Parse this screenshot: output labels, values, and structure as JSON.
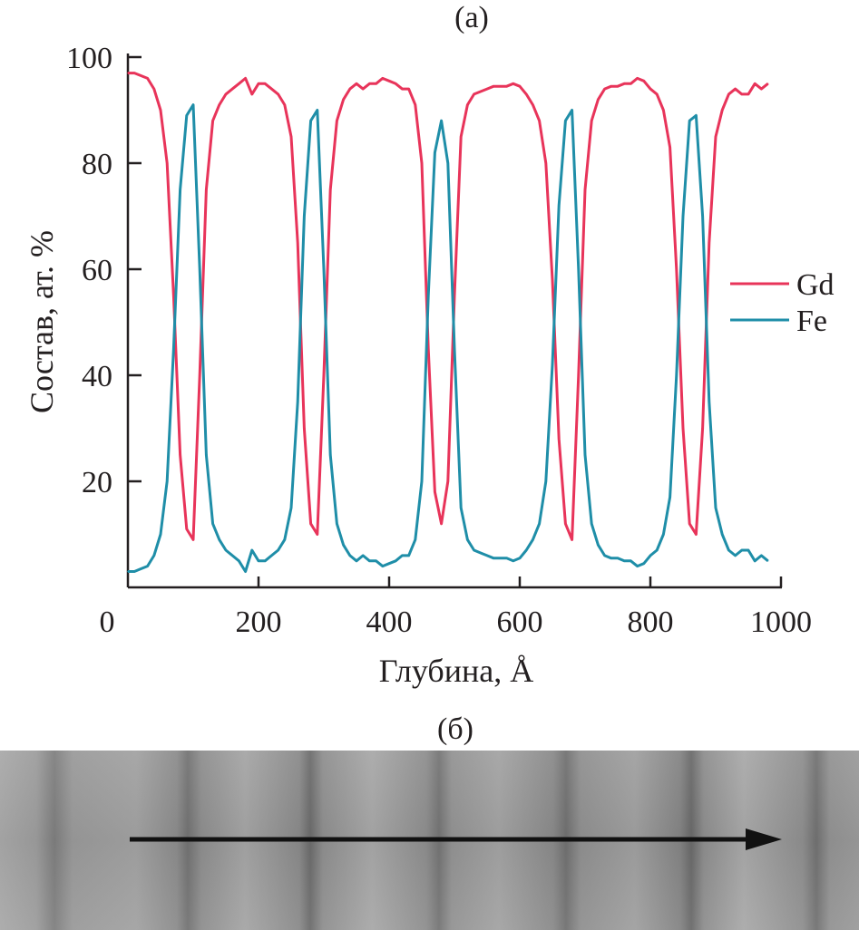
{
  "chart_data": {
    "type": "line",
    "panel_label": "(а)",
    "xlabel": "Глубина, Å",
    "ylabel": "Состав, ат. %",
    "xlim": [
      0,
      1000
    ],
    "ylim": [
      0,
      100
    ],
    "x_ticks": [
      "0",
      "200",
      "400",
      "600",
      "800",
      "1000"
    ],
    "y_ticks": [
      "20",
      "40",
      "60",
      "80",
      "100"
    ],
    "grid": false,
    "legend_position": "right",
    "x": [
      0,
      10,
      20,
      30,
      40,
      50,
      60,
      70,
      80,
      90,
      100,
      110,
      120,
      130,
      140,
      150,
      160,
      170,
      180,
      190,
      200,
      210,
      220,
      230,
      240,
      250,
      260,
      270,
      280,
      290,
      300,
      310,
      320,
      330,
      340,
      350,
      360,
      370,
      380,
      390,
      400,
      410,
      420,
      430,
      440,
      450,
      460,
      470,
      480,
      490,
      500,
      510,
      520,
      530,
      540,
      550,
      560,
      570,
      580,
      590,
      600,
      610,
      620,
      630,
      640,
      650,
      660,
      670,
      680,
      690,
      700,
      710,
      720,
      730,
      740,
      750,
      760,
      770,
      780,
      790,
      800,
      810,
      820,
      830,
      840,
      850,
      860,
      870,
      880,
      890,
      900,
      910,
      920,
      930,
      940,
      950,
      960,
      970,
      980
    ],
    "series": [
      {
        "name": "Gd",
        "color": "#e8345a",
        "values": [
          97,
          97,
          96.5,
          96,
          94,
          90,
          80,
          55,
          25,
          11,
          9,
          40,
          75,
          88,
          91,
          93,
          94,
          95,
          96,
          93,
          95,
          95,
          94,
          93,
          91,
          85,
          65,
          30,
          12,
          10,
          40,
          75,
          88,
          92,
          94,
          95,
          94,
          95,
          95,
          96,
          95.5,
          95,
          94,
          94,
          91,
          80,
          45,
          18,
          12,
          20,
          55,
          85,
          91,
          93,
          93.5,
          94,
          94.5,
          94.5,
          94.5,
          95,
          94.5,
          93,
          91,
          88,
          80,
          58,
          28,
          12,
          9,
          40,
          75,
          88,
          92,
          94,
          94.5,
          94.5,
          95,
          95,
          96,
          95.5,
          94,
          93,
          90,
          83,
          60,
          30,
          12,
          10,
          30,
          65,
          85,
          90,
          93,
          94,
          93,
          93,
          95,
          94,
          95
        ]
      },
      {
        "name": "Fe",
        "color": "#1f8ea8",
        "values": [
          3,
          3,
          3.5,
          4,
          6,
          10,
          20,
          45,
          75,
          89,
          91,
          60,
          25,
          12,
          9,
          7,
          6,
          5,
          3,
          7,
          5,
          5,
          6,
          7,
          9,
          15,
          35,
          70,
          88,
          90,
          60,
          25,
          12,
          8,
          6,
          5,
          6,
          5,
          5,
          4,
          4.5,
          5,
          6,
          6,
          9,
          20,
          55,
          82,
          88,
          80,
          45,
          15,
          9,
          7,
          6.5,
          6,
          5.5,
          5.5,
          5.5,
          5,
          5.5,
          7,
          9,
          12,
          20,
          42,
          72,
          88,
          90,
          60,
          25,
          12,
          8,
          6,
          5.5,
          5.5,
          5,
          5,
          4,
          4.5,
          6,
          7,
          10,
          17,
          40,
          70,
          88,
          89,
          70,
          35,
          15,
          10,
          7,
          6,
          7,
          7,
          5,
          6,
          5
        ]
      }
    ]
  },
  "image_panel": {
    "panel_label": "(б)",
    "arrow_direction": "right"
  }
}
